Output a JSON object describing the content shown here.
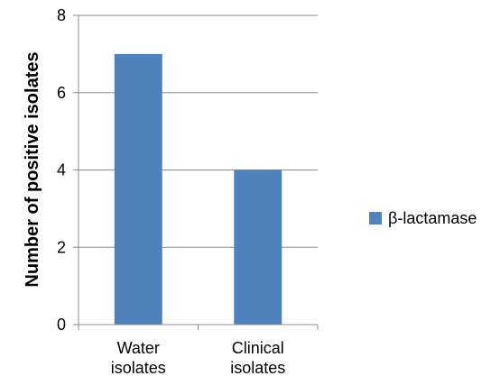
{
  "chart_data": {
    "type": "bar",
    "title": "",
    "xlabel": "",
    "ylabel": "Number of positive isolates",
    "ylim": [
      0,
      8
    ],
    "yticks": [
      0,
      2,
      4,
      6,
      8
    ],
    "grid": true,
    "legend_position": "right",
    "categories": [
      [
        "Water",
        "isolates"
      ],
      [
        "Clinical",
        "isolates"
      ]
    ],
    "series": [
      {
        "name": "β-lactamase",
        "color": "#4f81bd",
        "values": [
          7,
          4
        ]
      }
    ]
  }
}
